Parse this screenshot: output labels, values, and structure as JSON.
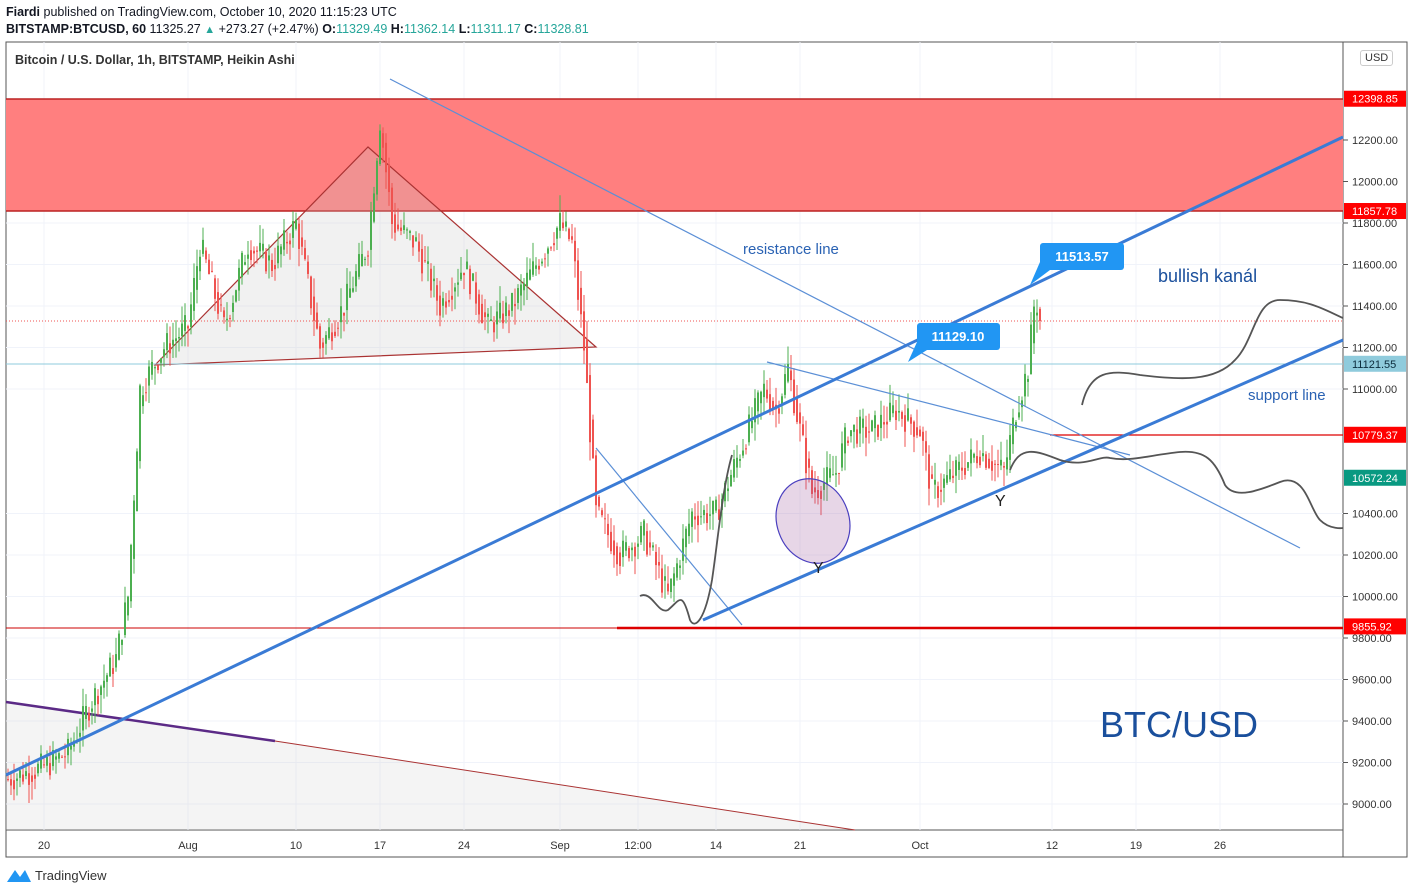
{
  "header": {
    "author": "Fiardi",
    "published": "published on TradingView.com, October 10, 2020 11:15:23 UTC",
    "symbol": "BITSTAMP:BTCUSD, 60",
    "last": "11325.27",
    "change": "+273.27 (+2.47%)",
    "o_label": "O:",
    "o": "11329.49",
    "h_label": "H:",
    "h": "11362.14",
    "l_label": "L:",
    "l": "11311.17",
    "c_label": "C:",
    "c": "11328.81"
  },
  "footer": {
    "logo_text": "TradingView"
  },
  "currency_button": "USD",
  "chart_data": {
    "type": "candlestick",
    "title": "Bitcoin / U.S. Dollar, 1h, BITSTAMP, Heikin Ashi",
    "x_unit": "days since Jul 20 2020",
    "xlim": [
      -3.2,
      108.3
    ],
    "ylim": [
      8800,
      12560
    ],
    "grid": true,
    "xticks": [
      {
        "day": 0,
        "label": "20"
      },
      {
        "day": 12,
        "label": "Aug"
      },
      {
        "day": 21,
        "label": "10"
      },
      {
        "day": 28,
        "label": "17"
      },
      {
        "day": 35,
        "label": "24"
      },
      {
        "day": 43,
        "label": "Sep"
      },
      {
        "day": 49.5,
        "label": "12:00"
      },
      {
        "day": 56,
        "label": "14"
      },
      {
        "day": 63,
        "label": "21"
      },
      {
        "day": 73,
        "label": "Oct"
      },
      {
        "day": 84,
        "label": "12"
      },
      {
        "day": 91,
        "label": "19"
      },
      {
        "day": 98,
        "label": "26"
      }
    ],
    "yticks": [
      9000,
      9200,
      9400,
      9600,
      9800,
      10000,
      10200,
      10400,
      11000,
      11200,
      11400,
      11600,
      11800,
      12000,
      12200
    ],
    "price_path": [
      [
        -3,
        9120
      ],
      [
        0,
        9180
      ],
      [
        2,
        9250
      ],
      [
        4,
        9500
      ],
      [
        6,
        9700
      ],
      [
        7,
        10000
      ],
      [
        8,
        11000
      ],
      [
        9,
        11100
      ],
      [
        10,
        11200
      ],
      [
        12,
        11300
      ],
      [
        13,
        11700
      ],
      [
        15,
        11300
      ],
      [
        17,
        11700
      ],
      [
        19,
        11600
      ],
      [
        21,
        11800
      ],
      [
        23,
        11200
      ],
      [
        25,
        11400
      ],
      [
        27,
        11700
      ],
      [
        28,
        12300
      ],
      [
        29,
        11800
      ],
      [
        31,
        11700
      ],
      [
        33,
        11400
      ],
      [
        35,
        11600
      ],
      [
        37,
        11300
      ],
      [
        39,
        11400
      ],
      [
        41,
        11600
      ],
      [
        43,
        11800
      ],
      [
        44,
        11700
      ],
      [
        45,
        11200
      ],
      [
        46,
        10400
      ],
      [
        48,
        10200
      ],
      [
        50,
        10300
      ],
      [
        52,
        10000
      ],
      [
        54,
        10400
      ],
      [
        56,
        10400
      ],
      [
        58,
        10700
      ],
      [
        60,
        11000
      ],
      [
        61,
        10900
      ],
      [
        62,
        11100
      ],
      [
        63,
        10800
      ],
      [
        64,
        10500
      ],
      [
        66,
        10600
      ],
      [
        67,
        10800
      ],
      [
        69,
        10800
      ],
      [
        71,
        10900
      ],
      [
        73,
        10800
      ],
      [
        74,
        10500
      ],
      [
        76,
        10600
      ],
      [
        78,
        10700
      ],
      [
        80,
        10600
      ],
      [
        81,
        10900
      ],
      [
        82,
        11100
      ],
      [
        82.6,
        11460
      ],
      [
        83,
        11330
      ]
    ],
    "price_labels": [
      {
        "value": "12398.85",
        "color": "#ff0000"
      },
      {
        "value": "11857.78",
        "color": "#ff0000"
      },
      {
        "value": "11121.55",
        "color": "#8fcbdc"
      },
      {
        "value": "10779.37",
        "color": "#ff0000"
      },
      {
        "value": "10572.24",
        "color": "#089981"
      },
      {
        "value": "9855.92",
        "color": "#ff0000"
      }
    ],
    "annotations": {
      "resistance": "resistance line",
      "channel": "bullish kanál",
      "support": "support line",
      "pair": "BTC/USD",
      "callout_high": "11513.57",
      "callout_break": "11129.10",
      "y1": "Y",
      "y2": "Y"
    },
    "colors": {
      "up": "#4caf50",
      "down": "#ef5350",
      "zone": "#ff7f7f",
      "line": "#3a7bd5",
      "callout": "#2196f3"
    }
  }
}
